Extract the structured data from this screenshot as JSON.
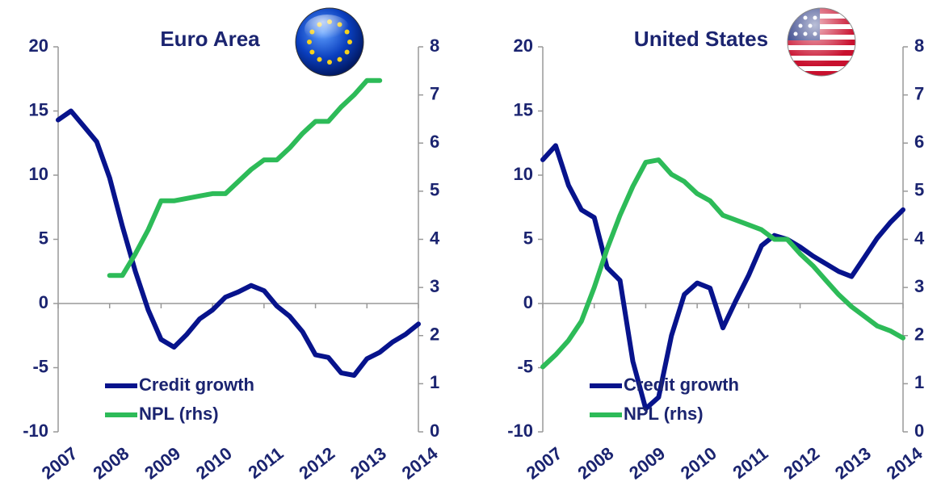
{
  "chart_data": [
    {
      "type": "line",
      "title": "Euro Area",
      "x": [
        2007,
        2007.25,
        2007.5,
        2007.75,
        2008,
        2008.25,
        2008.5,
        2008.75,
        2009,
        2009.25,
        2009.5,
        2009.75,
        2010,
        2010.25,
        2010.5,
        2010.75,
        2011,
        2011.25,
        2011.5,
        2011.75,
        2012,
        2012.25,
        2012.5,
        2012.75,
        2013,
        2013.25,
        2013.5,
        2013.75,
        2014
      ],
      "series": [
        {
          "name": "Credit growth",
          "color": "#07138c",
          "values": [
            14.3,
            15.0,
            13.8,
            12.6,
            9.8,
            6.0,
            2.5,
            -0.5,
            -2.8,
            -3.4,
            -2.4,
            -1.2,
            -0.5,
            0.5,
            0.9,
            1.4,
            1.0,
            -0.2,
            -1.0,
            -2.2,
            -4.0,
            -4.2,
            -5.4,
            -5.6,
            -4.3,
            -3.8,
            -3.0,
            -2.4,
            -1.6
          ]
        },
        {
          "name": "NPL (rhs)",
          "color": "#2dbb58",
          "axis": "y2",
          "values": [
            null,
            null,
            null,
            null,
            3.25,
            3.25,
            3.7,
            4.2,
            4.8,
            4.8,
            4.85,
            4.9,
            4.95,
            4.95,
            5.2,
            5.45,
            5.65,
            5.65,
            5.9,
            6.2,
            6.45,
            6.45,
            6.75,
            7.0,
            7.3,
            7.3,
            null,
            null,
            null
          ]
        }
      ],
      "xlim": [
        2007,
        2014
      ],
      "xticks": [
        2007,
        2008,
        2009,
        2010,
        2011,
        2012,
        2013,
        2014
      ],
      "ylim": [
        -10,
        20
      ],
      "yticks": [
        -10,
        -5,
        0,
        5,
        10,
        15,
        20
      ],
      "y2lim": [
        0,
        8
      ],
      "y2ticks": [
        0,
        1,
        2,
        3,
        4,
        5,
        6,
        7,
        8
      ],
      "legend": "lower left"
    },
    {
      "type": "line",
      "title": "United States",
      "x": [
        2007,
        2007.25,
        2007.5,
        2007.75,
        2008,
        2008.25,
        2008.5,
        2008.75,
        2009,
        2009.25,
        2009.5,
        2009.75,
        2010,
        2010.25,
        2010.5,
        2010.75,
        2011,
        2011.25,
        2011.5,
        2011.75,
        2012,
        2012.25,
        2012.5,
        2012.75,
        2013,
        2013.25,
        2013.5,
        2013.75,
        2014
      ],
      "series": [
        {
          "name": "Credit growth",
          "color": "#07138c",
          "values": [
            11.2,
            12.3,
            9.2,
            7.3,
            6.7,
            2.8,
            1.8,
            -4.5,
            -8.2,
            -7.3,
            -2.5,
            0.7,
            1.6,
            1.2,
            -1.9,
            0.2,
            2.2,
            4.5,
            5.3,
            5.0,
            4.4,
            3.7,
            3.1,
            2.5,
            2.1,
            3.6,
            5.1,
            6.3,
            7.3
          ]
        },
        {
          "name": "NPL (rhs)",
          "color": "#2dbb58",
          "axis": "y2",
          "values": [
            1.35,
            1.6,
            1.9,
            2.3,
            3.0,
            3.8,
            4.5,
            5.1,
            5.6,
            5.65,
            5.35,
            5.2,
            4.95,
            4.8,
            4.5,
            4.4,
            4.3,
            4.2,
            4.0,
            4.0,
            3.7,
            3.45,
            3.15,
            2.85,
            2.6,
            2.4,
            2.2,
            2.1,
            1.95
          ]
        }
      ],
      "xlim": [
        2007,
        2014
      ],
      "xticks": [
        2007,
        2008,
        2009,
        2010,
        2011,
        2012,
        2013,
        2014
      ],
      "ylim": [
        -10,
        20
      ],
      "yticks": [
        -10,
        -5,
        0,
        5,
        10,
        15,
        20
      ],
      "y2lim": [
        0,
        8
      ],
      "y2ticks": [
        0,
        1,
        2,
        3,
        4,
        5,
        6,
        7,
        8
      ],
      "legend": "lower left"
    }
  ]
}
